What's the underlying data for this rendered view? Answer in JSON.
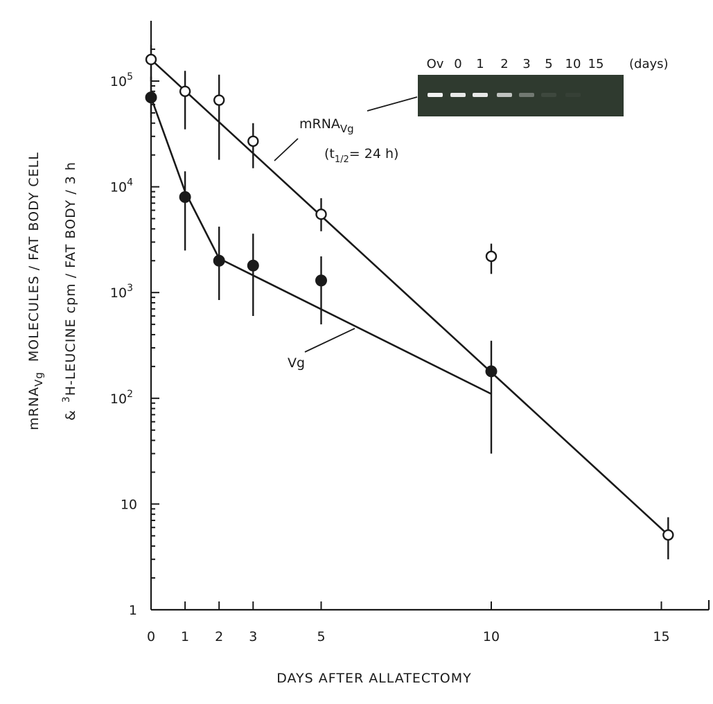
{
  "chart_data": {
    "type": "scatter",
    "title": "",
    "xlabel": "DAYS AFTER ALLATECTOMY",
    "ylabel_line1": "mRNA",
    "ylabel_line1_sub": "Vg",
    "ylabel_line1_rest": "MOLECULES / FAT BODY CELL",
    "ylabel_line2_prefix": "&",
    "ylabel_line2_sup": "3",
    "ylabel_line2_rest": "H-LEUCINE  cpm / FAT BODY / 3 h",
    "y_scale": "log",
    "xlim": [
      0,
      16
    ],
    "ylim": [
      1,
      200000
    ],
    "x_ticks": [
      0,
      1,
      2,
      3,
      5,
      10,
      15
    ],
    "y_ticks": [
      {
        "value": 1,
        "label": "1"
      },
      {
        "value": 10,
        "label": "10"
      },
      {
        "value": 100,
        "base": "10",
        "exp": "2"
      },
      {
        "value": 1000,
        "base": "10",
        "exp": "3"
      },
      {
        "value": 10000,
        "base": "10",
        "exp": "4"
      },
      {
        "value": 100000,
        "base": "10",
        "exp": "5"
      }
    ],
    "series": [
      {
        "name": "mRNA Vg",
        "marker": "open-circle",
        "points": [
          {
            "x": 0,
            "y": 160000,
            "lo": 100000,
            "hi": 220000
          },
          {
            "x": 1,
            "y": 80000,
            "lo": 35000,
            "hi": 125000
          },
          {
            "x": 2,
            "y": 66000,
            "lo": 18000,
            "hi": 115000
          },
          {
            "x": 3,
            "y": 27000,
            "lo": 15000,
            "hi": 40000
          },
          {
            "x": 5,
            "y": 5500,
            "lo": 3800,
            "hi": 7800
          },
          {
            "x": 10,
            "y": 2200,
            "lo": 1500,
            "hi": 2900
          },
          {
            "x": 15.2,
            "y": 5.1,
            "lo": 3,
            "hi": 7.5
          }
        ],
        "fit": [
          {
            "x": 0,
            "y": 160000
          },
          {
            "x": 15.2,
            "y": 5.1
          }
        ]
      },
      {
        "name": "Vg",
        "marker": "filled-circle",
        "points": [
          {
            "x": 0,
            "y": 70000,
            "lo": 45000,
            "hi": 110000
          },
          {
            "x": 1,
            "y": 8000,
            "lo": 2500,
            "hi": 14000
          },
          {
            "x": 2,
            "y": 2000,
            "lo": 850,
            "hi": 4200
          },
          {
            "x": 3,
            "y": 1800,
            "lo": 600,
            "hi": 3600
          },
          {
            "x": 5,
            "y": 1300,
            "lo": 500,
            "hi": 2200
          },
          {
            "x": 10,
            "y": 180,
            "lo": 30,
            "hi": 350
          }
        ],
        "fit": [
          {
            "x": 0,
            "y": 70000
          },
          {
            "x": 1,
            "y": 9000
          },
          {
            "x": 2,
            "y": 2100
          },
          {
            "x": 10,
            "y": 110
          }
        ]
      }
    ],
    "annotations": {
      "mrna_label": "mRNA",
      "mrna_label_sub": "Vg",
      "half_life_open": "(t",
      "half_life_sub": "1/2",
      "half_life_rest": "= 24 h)",
      "vg_label": "Vg"
    },
    "gel_inset": {
      "lanes": [
        "Ov",
        "0",
        "1",
        "2",
        "3",
        "5",
        "10",
        "15"
      ],
      "unit_label": "(days)",
      "band_intensity": [
        1.0,
        0.95,
        0.95,
        0.75,
        0.35,
        0.08,
        0.04,
        0.02
      ],
      "background_color": "#2f3a2f",
      "band_color": "#f2f2f2"
    }
  }
}
